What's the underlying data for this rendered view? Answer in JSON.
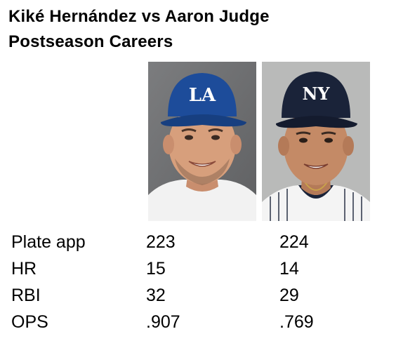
{
  "title_line1": "Kiké Hernández vs Aaron Judge",
  "title_line2": "Postseason Careers",
  "players": [
    {
      "photo_icon": "player-photo-dodgers-cap",
      "cap_logo": "LA",
      "cap_color": "#1d4c9a"
    },
    {
      "photo_icon": "player-photo-yankees-cap",
      "cap_logo": "NY",
      "cap_color": "#1a2339"
    }
  ],
  "stats": [
    {
      "label": "Plate app",
      "a": "223",
      "b": "224"
    },
    {
      "label": "HR",
      "a": "15",
      "b": "14"
    },
    {
      "label": "RBI",
      "a": "32",
      "b": "29"
    },
    {
      "label": "OPS",
      "a": ".907",
      "b": ".769"
    }
  ]
}
